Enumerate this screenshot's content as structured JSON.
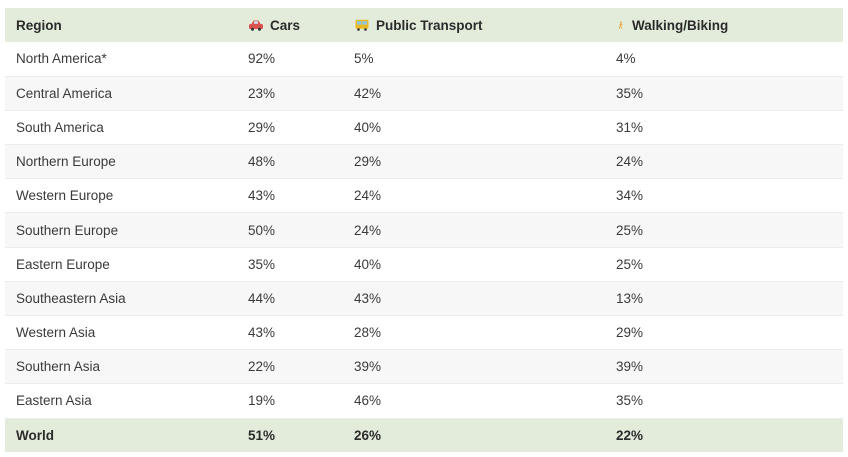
{
  "columns": {
    "region": "Region",
    "cars": "Cars",
    "public_transport": "Public Transport",
    "walking_biking": "Walking/Biking"
  },
  "icons": {
    "cars": "car-icon",
    "public_transport": "bus-icon",
    "walking_biking": "walking-person-icon"
  },
  "colors": {
    "header_bg": "#e3ecdb",
    "car_icon": "#d9534f",
    "bus_icon": "#e8b923",
    "walk_icon": "#e8a13a"
  },
  "rows": [
    {
      "region": "North America*",
      "cars": "92%",
      "public_transport": "5%",
      "walking_biking": "4%"
    },
    {
      "region": "Central America",
      "cars": "23%",
      "public_transport": "42%",
      "walking_biking": "35%"
    },
    {
      "region": "South America",
      "cars": "29%",
      "public_transport": "40%",
      "walking_biking": "31%"
    },
    {
      "region": "Northern Europe",
      "cars": "48%",
      "public_transport": "29%",
      "walking_biking": "24%"
    },
    {
      "region": "Western Europe",
      "cars": "43%",
      "public_transport": "24%",
      "walking_biking": "34%"
    },
    {
      "region": "Southern Europe",
      "cars": "50%",
      "public_transport": "24%",
      "walking_biking": "25%"
    },
    {
      "region": "Eastern Europe",
      "cars": "35%",
      "public_transport": "40%",
      "walking_biking": "25%"
    },
    {
      "region": "Southeastern Asia",
      "cars": "44%",
      "public_transport": "43%",
      "walking_biking": "13%"
    },
    {
      "region": "Western Asia",
      "cars": "43%",
      "public_transport": "28%",
      "walking_biking": "29%"
    },
    {
      "region": "Southern Asia",
      "cars": "22%",
      "public_transport": "39%",
      "walking_biking": "39%"
    },
    {
      "region": "Eastern Asia",
      "cars": "19%",
      "public_transport": "46%",
      "walking_biking": "35%"
    }
  ],
  "total": {
    "region": "World",
    "cars": "51%",
    "public_transport": "26%",
    "walking_biking": "22%"
  }
}
